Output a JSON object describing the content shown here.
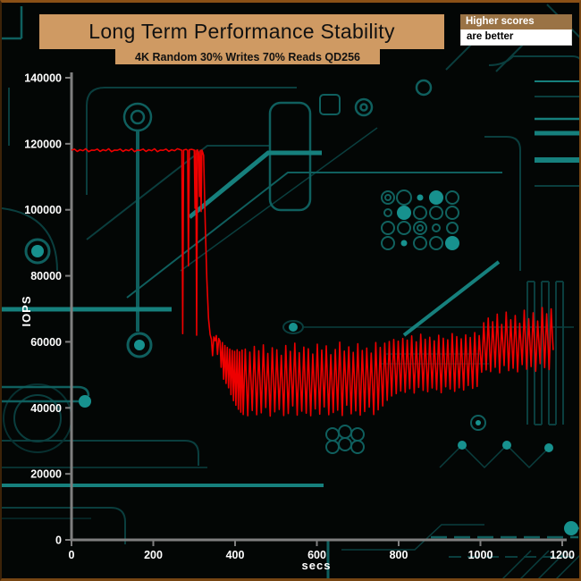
{
  "header": {
    "title": "Long Term Performance Stability",
    "subtitle": "4K Random 30% Writes 70% Reads QD256",
    "badge": {
      "line1": "Higher scores",
      "line2": "are better"
    }
  },
  "colors": {
    "background": "#030605",
    "title_box": "#cf9a63",
    "badge_brown": "#9a7345",
    "badge_white": "#ffffff",
    "border_brown": "#8a5016",
    "axis": "#7f7f7f",
    "tick_text": "#ffffff",
    "line_red": "#ee0000",
    "circuit_dim": "#0a3e3e",
    "circuit_mid": "#0f5f5e",
    "circuit_bright": "#16807d"
  },
  "chart_data": {
    "type": "line",
    "title": "Long Term Performance Stability",
    "subtitle": "4K Random 30% Writes 70% Reads QD256",
    "xlabel": "secs",
    "ylabel": "IOPS",
    "xlim": [
      0,
      1200
    ],
    "ylim": [
      0,
      140000
    ],
    "x_ticks": [
      0,
      200,
      400,
      600,
      800,
      1000,
      1200
    ],
    "y_ticks": [
      0,
      20000,
      40000,
      60000,
      80000,
      100000,
      120000,
      140000
    ],
    "grid": false,
    "legend": "none",
    "line_color": "#ee0000",
    "series": [
      {
        "name": "4K Random 30% Writes 70% Reads QD256",
        "points": [
          [
            0,
            118000
          ],
          [
            7,
            118400
          ],
          [
            14,
            117700
          ],
          [
            21,
            118200
          ],
          [
            28,
            117900
          ],
          [
            35,
            118500
          ],
          [
            42,
            117600
          ],
          [
            49,
            118100
          ],
          [
            56,
            118000
          ],
          [
            63,
            118400
          ],
          [
            70,
            117700
          ],
          [
            77,
            118200
          ],
          [
            84,
            117900
          ],
          [
            91,
            118500
          ],
          [
            98,
            117600
          ],
          [
            105,
            118100
          ],
          [
            112,
            118000
          ],
          [
            119,
            118400
          ],
          [
            126,
            117700
          ],
          [
            133,
            118200
          ],
          [
            140,
            117900
          ],
          [
            147,
            118500
          ],
          [
            154,
            117600
          ],
          [
            161,
            118100
          ],
          [
            168,
            118000
          ],
          [
            175,
            118400
          ],
          [
            182,
            117700
          ],
          [
            189,
            118200
          ],
          [
            196,
            117900
          ],
          [
            203,
            118500
          ],
          [
            210,
            117600
          ],
          [
            217,
            118100
          ],
          [
            224,
            118000
          ],
          [
            231,
            118400
          ],
          [
            238,
            117700
          ],
          [
            245,
            118200
          ],
          [
            252,
            117900
          ],
          [
            259,
            118500
          ],
          [
            266,
            118200
          ],
          [
            270,
            118000
          ],
          [
            272,
            62500
          ],
          [
            274,
            118100
          ],
          [
            280,
            118300
          ],
          [
            284,
            118000
          ],
          [
            286,
            83000
          ],
          [
            288,
            118200
          ],
          [
            294,
            118300
          ],
          [
            300,
            118100
          ],
          [
            302,
            100500
          ],
          [
            304,
            118000
          ],
          [
            306,
            62000
          ],
          [
            308,
            118200
          ],
          [
            311,
            117200
          ],
          [
            313,
            104000
          ],
          [
            315,
            118000
          ],
          [
            317,
            99500
          ],
          [
            319,
            118100
          ],
          [
            321,
            117300
          ],
          [
            323,
            116500
          ],
          [
            327,
            96000
          ],
          [
            331,
            79000
          ],
          [
            335,
            67000
          ],
          [
            339,
            62200
          ],
          [
            342,
            60800
          ],
          [
            345,
            55800
          ],
          [
            348,
            61500
          ],
          [
            351,
            60300
          ],
          [
            354,
            61900
          ],
          [
            357,
            56200
          ],
          [
            360,
            61000
          ],
          [
            363,
            60200
          ],
          [
            366,
            52300
          ],
          [
            369,
            59800
          ],
          [
            372,
            48700
          ],
          [
            375,
            58900
          ],
          [
            378,
            47400
          ],
          [
            381,
            58300
          ],
          [
            384,
            46100
          ],
          [
            387,
            57800
          ],
          [
            390,
            44000
          ],
          [
            393,
            57400
          ],
          [
            396,
            42200
          ],
          [
            399,
            57100
          ],
          [
            402,
            40800
          ],
          [
            405,
            57600
          ],
          [
            408,
            39600
          ],
          [
            411,
            57000
          ],
          [
            414,
            38700
          ],
          [
            417,
            57500
          ],
          [
            420,
            38000
          ],
          [
            425,
            57800
          ],
          [
            431,
            37600
          ],
          [
            436,
            56900
          ],
          [
            442,
            39200
          ],
          [
            447,
            58600
          ],
          [
            453,
            37900
          ],
          [
            458,
            57300
          ],
          [
            464,
            38500
          ],
          [
            469,
            59100
          ],
          [
            475,
            40100
          ],
          [
            480,
            56500
          ],
          [
            486,
            37500
          ],
          [
            491,
            58200
          ],
          [
            497,
            38800
          ],
          [
            502,
            57600
          ],
          [
            508,
            39500
          ],
          [
            513,
            55900
          ],
          [
            519,
            37700
          ],
          [
            524,
            58900
          ],
          [
            530,
            38300
          ],
          [
            535,
            57100
          ],
          [
            541,
            40600
          ],
          [
            546,
            59600
          ],
          [
            552,
            37800
          ],
          [
            557,
            56700
          ],
          [
            563,
            39000
          ],
          [
            568,
            58400
          ],
          [
            574,
            38400
          ],
          [
            579,
            57900
          ],
          [
            585,
            37600
          ],
          [
            590,
            56300
          ],
          [
            596,
            39700
          ],
          [
            601,
            59300
          ],
          [
            607,
            38100
          ],
          [
            612,
            57500
          ],
          [
            618,
            40300
          ],
          [
            623,
            58800
          ],
          [
            629,
            37900
          ],
          [
            634,
            56100
          ],
          [
            640,
            38600
          ],
          [
            645,
            57700
          ],
          [
            651,
            39300
          ],
          [
            656,
            59900
          ],
          [
            662,
            37700
          ],
          [
            667,
            57200
          ],
          [
            673,
            40800
          ],
          [
            678,
            58500
          ],
          [
            684,
            38200
          ],
          [
            689,
            56800
          ],
          [
            695,
            39100
          ],
          [
            700,
            59400
          ],
          [
            706,
            37800
          ],
          [
            711,
            57400
          ],
          [
            717,
            38900
          ],
          [
            722,
            58100
          ],
          [
            728,
            40200
          ],
          [
            733,
            56600
          ],
          [
            739,
            38000
          ],
          [
            744,
            59800
          ],
          [
            750,
            39400
          ],
          [
            755,
            58300
          ],
          [
            761,
            40600
          ],
          [
            766,
            59600
          ],
          [
            772,
            42300
          ],
          [
            777,
            60100
          ],
          [
            783,
            43600
          ],
          [
            788,
            60700
          ],
          [
            794,
            44300
          ],
          [
            799,
            60200
          ],
          [
            805,
            45100
          ],
          [
            810,
            61000
          ],
          [
            816,
            44700
          ],
          [
            821,
            60500
          ],
          [
            827,
            45800
          ],
          [
            832,
            61800
          ],
          [
            838,
            44500
          ],
          [
            843,
            60000
          ],
          [
            849,
            46200
          ],
          [
            854,
            62300
          ],
          [
            860,
            45300
          ],
          [
            865,
            60800
          ],
          [
            871,
            44900
          ],
          [
            876,
            61400
          ],
          [
            882,
            46000
          ],
          [
            887,
            60300
          ],
          [
            893,
            45500
          ],
          [
            898,
            62000
          ],
          [
            904,
            44600
          ],
          [
            909,
            61100
          ],
          [
            915,
            46400
          ],
          [
            920,
            60600
          ],
          [
            926,
            45700
          ],
          [
            931,
            62500
          ],
          [
            937,
            45000
          ],
          [
            942,
            61600
          ],
          [
            948,
            46100
          ],
          [
            953,
            60900
          ],
          [
            959,
            45400
          ],
          [
            964,
            62100
          ],
          [
            970,
            46800
          ],
          [
            975,
            61300
          ],
          [
            981,
            45900
          ],
          [
            986,
            62800
          ],
          [
            992,
            46500
          ],
          [
            997,
            61900
          ],
          [
            1003,
            50800
          ],
          [
            1008,
            65800
          ],
          [
            1014,
            51500
          ],
          [
            1019,
            67200
          ],
          [
            1025,
            51000
          ],
          [
            1030,
            66100
          ],
          [
            1036,
            52300
          ],
          [
            1041,
            68400
          ],
          [
            1047,
            50600
          ],
          [
            1052,
            65300
          ],
          [
            1058,
            52800
          ],
          [
            1063,
            69000
          ],
          [
            1069,
            51300
          ],
          [
            1074,
            66700
          ],
          [
            1080,
            52000
          ],
          [
            1085,
            68000
          ],
          [
            1091,
            50900
          ],
          [
            1096,
            65600
          ],
          [
            1102,
            53100
          ],
          [
            1107,
            69600
          ],
          [
            1113,
            51700
          ],
          [
            1118,
            67000
          ],
          [
            1124,
            52500
          ],
          [
            1129,
            68800
          ],
          [
            1135,
            51100
          ],
          [
            1140,
            66300
          ],
          [
            1146,
            53400
          ],
          [
            1151,
            70400
          ],
          [
            1157,
            52200
          ],
          [
            1162,
            68500
          ],
          [
            1168,
            51600
          ],
          [
            1173,
            70000
          ],
          [
            1176,
            62000
          ],
          [
            1178,
            57500
          ]
        ]
      }
    ]
  }
}
